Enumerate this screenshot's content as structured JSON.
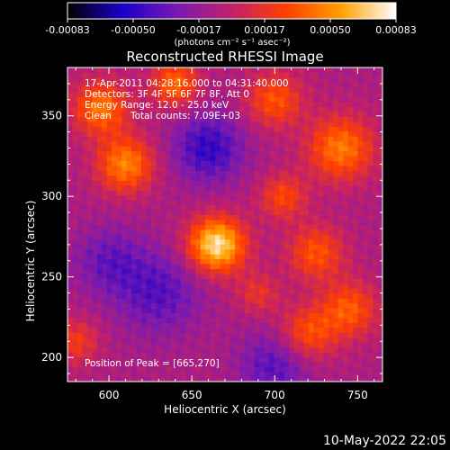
{
  "chart_data": {
    "type": "heatmap",
    "title": "Reconstructed RHESSI Image",
    "xlabel": "Heliocentric X (arcsec)",
    "ylabel": "Heliocentric Y (arcsec)",
    "xlim": [
      575,
      765
    ],
    "ylim": [
      185,
      380
    ],
    "x_ticks": [
      600,
      650,
      700,
      750
    ],
    "y_ticks": [
      200,
      250,
      300,
      350
    ],
    "colorbar": {
      "min": -0.00083,
      "max": 0.00083,
      "ticks": [
        "-0.00083",
        "-0.00050",
        "-0.00017",
        "0.00017",
        "0.00050",
        "0.00083"
      ],
      "unit_label": "(photons cm⁻² s⁻¹ asec⁻²)",
      "colormap": [
        "#000000",
        "#1a00c8",
        "#7a1ab0",
        "#c0206a",
        "#ff4000",
        "#ffa000",
        "#ffffff"
      ]
    },
    "annotations": {
      "time_range": "17-Apr-2011 04:28:16.000 to 04:31:40.000",
      "detectors": "Detectors: 3F 4F 5F 6F 7F 8F, Att 0",
      "energy_range": "Energy Range: 12.0 - 25.0 keV",
      "method": "Clean",
      "total_counts": "Total counts: 7.09E+03",
      "peak_position": "Position of Peak = [665,270]"
    },
    "peak": {
      "x": 665,
      "y": 270
    },
    "sources": [
      {
        "x": 665,
        "y": 270,
        "amp": 0.00083,
        "sigma": 12
      },
      {
        "x": 610,
        "y": 320,
        "amp": 0.00055,
        "sigma": 12
      },
      {
        "x": 595,
        "y": 355,
        "amp": 0.0005,
        "sigma": 12
      },
      {
        "x": 640,
        "y": 370,
        "amp": 0.00048,
        "sigma": 10
      },
      {
        "x": 700,
        "y": 360,
        "amp": 0.0004,
        "sigma": 12
      },
      {
        "x": 740,
        "y": 330,
        "amp": 0.00052,
        "sigma": 14
      },
      {
        "x": 705,
        "y": 300,
        "amp": 0.00035,
        "sigma": 10
      },
      {
        "x": 725,
        "y": 265,
        "amp": 0.0004,
        "sigma": 12
      },
      {
        "x": 745,
        "y": 230,
        "amp": 0.00042,
        "sigma": 12
      },
      {
        "x": 720,
        "y": 215,
        "amp": 0.0004,
        "sigma": 12
      },
      {
        "x": 690,
        "y": 240,
        "amp": 0.00025,
        "sigma": 9
      },
      {
        "x": 580,
        "y": 210,
        "amp": 0.0003,
        "sigma": 10
      },
      {
        "x": 660,
        "y": 330,
        "amp": -0.0004,
        "sigma": 15
      },
      {
        "x": 630,
        "y": 240,
        "amp": -0.0003,
        "sigma": 18
      },
      {
        "x": 700,
        "y": 195,
        "amp": -0.0003,
        "sigma": 15
      },
      {
        "x": 600,
        "y": 260,
        "amp": -0.00025,
        "sigma": 15
      }
    ]
  },
  "footer": {
    "timestamp": "10-May-2022 22:05"
  }
}
